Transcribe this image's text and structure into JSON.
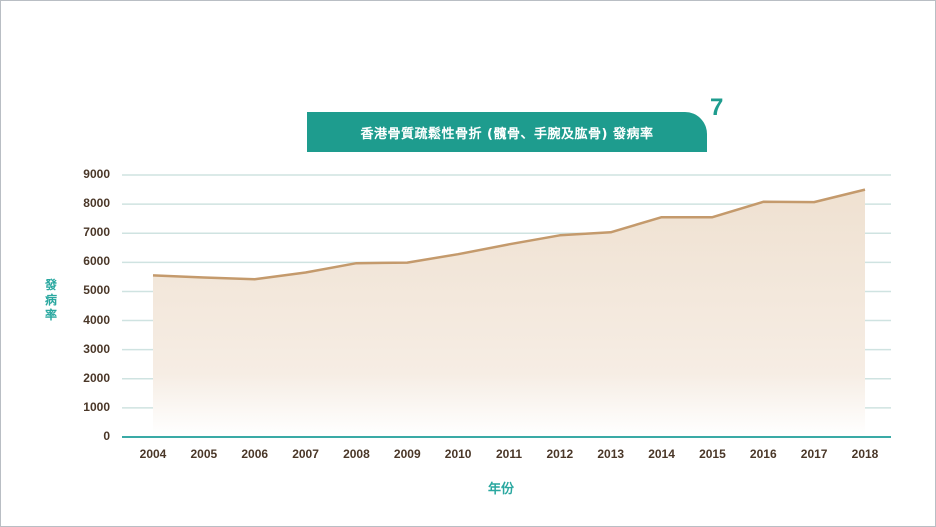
{
  "title": "香港骨質疏鬆性骨折 (髖骨、手腕及肱骨) 發病率",
  "figure_number": "7",
  "colors": {
    "accent": "#1e9c8e",
    "axis_label": "#2aa8a0",
    "line": "#c49a6c",
    "fill": "#f1e4d6",
    "gridline": "#cfe3e1",
    "baseline": "#3aaaa6",
    "tick_text": "#4a3728"
  },
  "chart_data": {
    "type": "area",
    "title": "香港骨質疏鬆性骨折 (髖骨、手腕及肱骨) 發病率",
    "xlabel": "年份",
    "ylabel": "發病率",
    "categories": [
      "2004",
      "2005",
      "2006",
      "2007",
      "2008",
      "2009",
      "2010",
      "2011",
      "2012",
      "2013",
      "2014",
      "2015",
      "2016",
      "2017",
      "2018"
    ],
    "series": [
      {
        "name": "發病率",
        "values": [
          5550,
          5480,
          5420,
          5650,
          5970,
          5990,
          6280,
          6620,
          6930,
          7030,
          7550,
          7550,
          8080,
          8070,
          8500
        ]
      }
    ],
    "ylim": [
      0,
      9000
    ],
    "yticks": [
      0,
      1000,
      2000,
      3000,
      4000,
      5000,
      6000,
      7000,
      8000,
      9000
    ],
    "grid": true,
    "legend": "none"
  }
}
